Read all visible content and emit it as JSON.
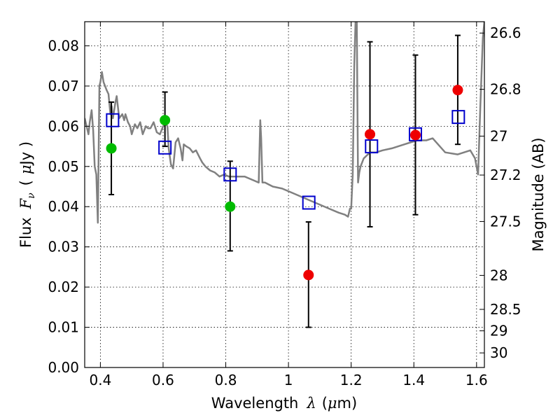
{
  "chart_data": {
    "type": "scatter",
    "xlabel": "Wavelength",
    "xlabel_symbol": "λ",
    "xlabel_unit_open": "(",
    "xlabel_unit_mu": "μ",
    "xlabel_unit_rest": "m)",
    "ylabel_left": "Flux",
    "ylabel_left_symbol": "F",
    "ylabel_left_sub": "ν",
    "ylabel_left_unit_open": "(",
    "ylabel_left_unit_mu": "μ",
    "ylabel_left_unit_rest": "Jy )",
    "ylabel_right": "Magnitude (AB)",
    "xlim": [
      0.35,
      1.625
    ],
    "ylim": [
      0.0,
      0.086
    ],
    "grid": true,
    "x_ticks": [
      0.4,
      0.6,
      0.8,
      1.0,
      1.2,
      1.4,
      1.6
    ],
    "x_tick_labels": [
      "0.4",
      "0.6",
      "0.8",
      "1",
      "1.2",
      "1.4",
      "1.6"
    ],
    "y_ticks": [
      0.0,
      0.01,
      0.02,
      0.03,
      0.04,
      0.05,
      0.06,
      0.07,
      0.08
    ],
    "y_tick_labels": [
      "0.00",
      "0.01",
      "0.02",
      "0.03",
      "0.04",
      "0.05",
      "0.06",
      "0.07",
      "0.08"
    ],
    "mag_ticks": [
      26.6,
      26.8,
      27.0,
      27.2,
      27.5,
      28.0,
      28.5,
      29.0,
      30.0
    ],
    "mag_tick_labels": [
      "26.6",
      "26.8",
      "27",
      "27.2",
      "27.5",
      "28",
      "28.5",
      "29",
      "30"
    ],
    "series": [
      {
        "name": "observed_green",
        "marker": "circle",
        "color": "#00bb00",
        "x": [
          0.435,
          0.606,
          0.814
        ],
        "y": [
          0.0545,
          0.0615,
          0.04
        ],
        "yerr_low": [
          0.043,
          0.055,
          0.029
        ],
        "yerr_high": [
          0.066,
          0.0685,
          0.0513
        ]
      },
      {
        "name": "observed_red",
        "marker": "circle",
        "color": "#ee0000",
        "x": [
          1.064,
          1.26,
          1.405,
          1.54
        ],
        "y": [
          0.023,
          0.058,
          0.0578,
          0.069
        ],
        "yerr_low": [
          0.01,
          0.035,
          0.038,
          0.0555
        ],
        "yerr_high": [
          0.0362,
          0.081,
          0.0777,
          0.0826
        ]
      },
      {
        "name": "model_photometry",
        "marker": "open-square",
        "color": "#0000cc",
        "x": [
          0.439,
          0.606,
          0.814,
          1.065,
          1.265,
          1.405,
          1.542
        ],
        "y": [
          0.0615,
          0.0547,
          0.048,
          0.041,
          0.055,
          0.058,
          0.0623
        ]
      },
      {
        "name": "sed_model",
        "marker": "line",
        "color": "#808080",
        "x": [
          0.35,
          0.362,
          0.366,
          0.372,
          0.377,
          0.382,
          0.387,
          0.392,
          0.397,
          0.4,
          0.405,
          0.41,
          0.415,
          0.42,
          0.426,
          0.432,
          0.436,
          0.44,
          0.448,
          0.452,
          0.46,
          0.47,
          0.476,
          0.48,
          0.488,
          0.495,
          0.5,
          0.51,
          0.518,
          0.527,
          0.535,
          0.545,
          0.552,
          0.56,
          0.57,
          0.58,
          0.59,
          0.6,
          0.608,
          0.614,
          0.618,
          0.625,
          0.632,
          0.64,
          0.648,
          0.656,
          0.662,
          0.666,
          0.674,
          0.685,
          0.695,
          0.705,
          0.718,
          0.725,
          0.735,
          0.75,
          0.765,
          0.78,
          0.795,
          0.81,
          0.83,
          0.86,
          0.89,
          0.905,
          0.91,
          0.913,
          0.917,
          0.925,
          0.95,
          0.98,
          1.01,
          1.04,
          1.07,
          1.1,
          1.13,
          1.16,
          1.18,
          1.19,
          1.196,
          1.2,
          1.205,
          1.21,
          1.214,
          1.218,
          1.222,
          1.226,
          1.23,
          1.24,
          1.26,
          1.28,
          1.3,
          1.33,
          1.37,
          1.41,
          1.44,
          1.46,
          1.5,
          1.54,
          1.56,
          1.58,
          1.595,
          1.605,
          1.612,
          1.62,
          1.625
        ],
        "y": [
          0.062,
          0.058,
          0.061,
          0.064,
          0.059,
          0.05,
          0.048,
          0.036,
          0.07,
          0.071,
          0.0735,
          0.071,
          0.07,
          0.069,
          0.068,
          0.063,
          0.065,
          0.062,
          0.066,
          0.0675,
          0.062,
          0.063,
          0.0615,
          0.063,
          0.061,
          0.06,
          0.058,
          0.0605,
          0.0595,
          0.061,
          0.058,
          0.06,
          0.0595,
          0.0595,
          0.061,
          0.0585,
          0.058,
          0.06,
          0.0605,
          0.06,
          0.0545,
          0.0505,
          0.0495,
          0.056,
          0.057,
          0.0545,
          0.0515,
          0.0555,
          0.055,
          0.0545,
          0.0535,
          0.054,
          0.052,
          0.051,
          0.05,
          0.049,
          0.0485,
          0.0475,
          0.048,
          0.0475,
          0.0475,
          0.0475,
          0.0465,
          0.046,
          0.0615,
          0.057,
          0.046,
          0.046,
          0.045,
          0.0445,
          0.0435,
          0.0425,
          0.0415,
          0.0405,
          0.0395,
          0.0385,
          0.038,
          0.0375,
          0.0395,
          0.0395,
          0.048,
          0.075,
          0.086,
          0.086,
          0.046,
          0.0485,
          0.05,
          0.052,
          0.0535,
          0.0535,
          0.054,
          0.0545,
          0.0555,
          0.0565,
          0.0565,
          0.057,
          0.0535,
          0.053,
          0.0535,
          0.054,
          0.052,
          0.048,
          0.065,
          0.082,
          0.086
        ]
      }
    ]
  }
}
